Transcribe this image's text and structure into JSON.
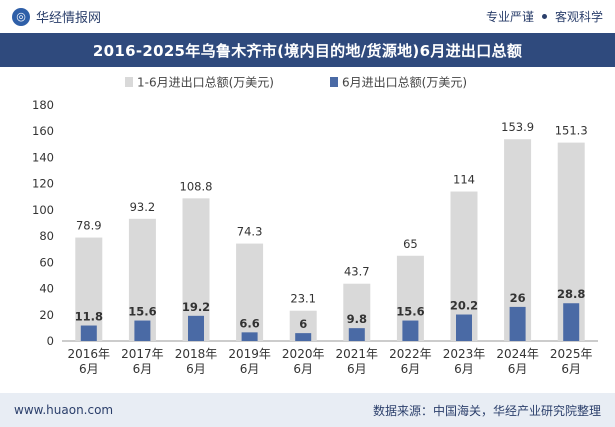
{
  "header": {
    "brand": "华经情报网",
    "tag1": "专业严谨",
    "tag2": "客观科学"
  },
  "chart_title": "2016-2025年乌鲁木齐市(境内目的地/货源地)6月进出口总额",
  "footer": {
    "url": "www.huaon.com",
    "source": "数据来源：中国海关，华经产业研究院整理"
  },
  "colors": {
    "title_bg": "#2f4a7d",
    "series_total": "#d9d9d9",
    "series_june": "#4a6aa5"
  },
  "chart_data": {
    "type": "bar",
    "categories": [
      "2016年\n6月",
      "2017年\n6月",
      "2018年\n6月",
      "2019年\n6月",
      "2020年\n6月",
      "2021年\n6月",
      "2022年\n6月",
      "2023年\n6月",
      "2024年\n6月",
      "2025年\n6月"
    ],
    "series": [
      {
        "name": "1-6月进出口总额(万美元)",
        "values": [
          78.9,
          93.2,
          108.8,
          74.3,
          23.1,
          43.7,
          65,
          114,
          153.9,
          151.3
        ]
      },
      {
        "name": "6月进出口总额(万美元)",
        "values": [
          11.8,
          15.6,
          19.2,
          6.6,
          6,
          9.8,
          15.6,
          20.2,
          26,
          28.8
        ]
      }
    ],
    "ylim": [
      0,
      180
    ],
    "yticks": [
      0,
      20,
      40,
      60,
      80,
      100,
      120,
      140,
      160,
      180
    ],
    "legend_position": "top"
  }
}
